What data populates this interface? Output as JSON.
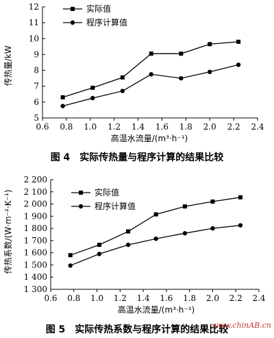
{
  "chart_data": [
    {
      "type": "line",
      "xlabel": "高温水流量/(m³·h⁻¹)",
      "ylabel": "传热量/kW",
      "xlim": [
        0.6,
        2.4
      ],
      "ylim": [
        5,
        12
      ],
      "xticks": [
        "0.6",
        "0.8",
        "1.0",
        "1.2",
        "1.4",
        "1.6",
        "1.8",
        "2.0",
        "2.2",
        "2.4"
      ],
      "yticks": [
        "5",
        "6",
        "7",
        "8",
        "9",
        "10",
        "11",
        "12"
      ],
      "legend_position": "top-left",
      "grid": false,
      "series": [
        {
          "name": "实际值",
          "marker": "square",
          "x": [
            0.77,
            1.02,
            1.27,
            1.51,
            1.76,
            2.0,
            2.24
          ],
          "y": [
            6.3,
            6.9,
            7.55,
            9.05,
            9.05,
            9.65,
            9.8
          ]
        },
        {
          "name": "程序计算值",
          "marker": "circle",
          "x": [
            0.77,
            1.02,
            1.27,
            1.51,
            1.76,
            2.0,
            2.24
          ],
          "y": [
            5.75,
            6.25,
            6.7,
            7.75,
            7.5,
            7.9,
            8.35
          ]
        }
      ],
      "caption": "图 4　实际传热量与程序计算的结果比较"
    },
    {
      "type": "line",
      "xlabel": "高温水流量/(m³·h⁻¹)",
      "ylabel": "传热系数/(W·m⁻²·K⁻¹)",
      "xlim": [
        0.6,
        2.4
      ],
      "ylim": [
        1300,
        2200
      ],
      "xticks": [
        "0.6",
        "0.8",
        "1.0",
        "1.2",
        "1.4",
        "1.6",
        "1.8",
        "2.0",
        "2.2",
        "2.4"
      ],
      "yticks": [
        "1 300",
        "1 400",
        "1 500",
        "1 600",
        "1 700",
        "1 800",
        "1 900",
        "2 000",
        "2 100",
        "2 200"
      ],
      "legend_position": "top-left",
      "grid": false,
      "series": [
        {
          "name": "实际值",
          "marker": "square",
          "x": [
            0.77,
            1.02,
            1.27,
            1.51,
            1.76,
            2.0,
            2.24
          ],
          "y": [
            1580,
            1665,
            1775,
            1915,
            1980,
            2020,
            2055
          ]
        },
        {
          "name": "程序计算值",
          "marker": "circle",
          "x": [
            0.77,
            1.02,
            1.27,
            1.51,
            1.76,
            2.0,
            2.24
          ],
          "y": [
            1495,
            1590,
            1665,
            1715,
            1760,
            1800,
            1825
          ]
        }
      ],
      "caption": "图 5　实际传热系数与程序计算的结果比较"
    }
  ],
  "watermark": "www.chinAB.cn"
}
